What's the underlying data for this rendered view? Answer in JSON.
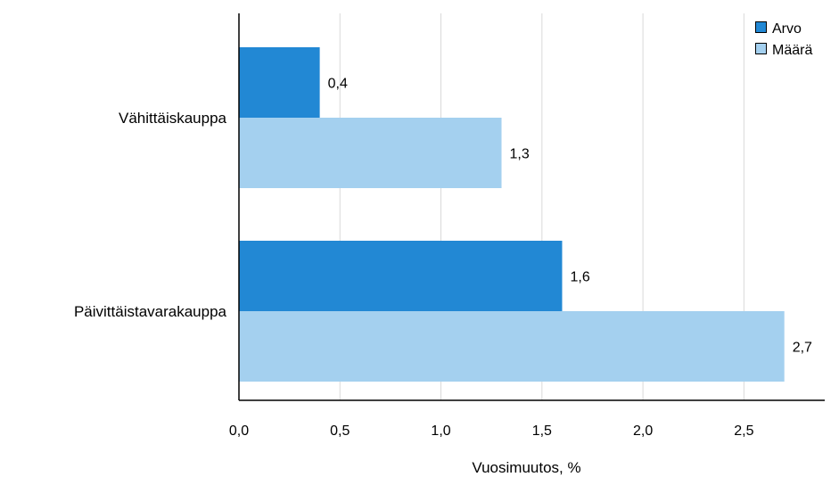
{
  "chart_data": {
    "type": "bar",
    "orientation": "horizontal",
    "categories": [
      "Vähittäiskauppa",
      "Päivittäistavarakauppa"
    ],
    "series": [
      {
        "name": "Arvo",
        "values": [
          0.4,
          1.6
        ],
        "labels": [
          "0,4",
          "1,6"
        ],
        "color": "#2288d4"
      },
      {
        "name": "Määrä",
        "values": [
          1.3,
          2.7
        ],
        "labels": [
          "1,3",
          "2,7"
        ],
        "color": "#a4d0ef"
      }
    ],
    "xlabel": "Vuosimuutos, %",
    "ylabel": "",
    "xlim": [
      0,
      2.9
    ],
    "xticks": [
      0,
      0.5,
      1,
      1.5,
      2,
      2.5
    ],
    "xtick_labels": [
      "0,0",
      "0,5",
      "1,0",
      "1,5",
      "2,0",
      "2,5"
    ],
    "grid": "vertical",
    "legend": "top-right"
  }
}
